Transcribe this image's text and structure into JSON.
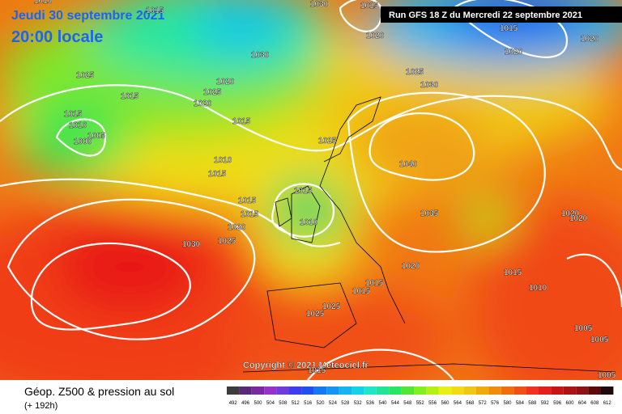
{
  "header": {
    "date": "Jeudi 30 septembre 2021",
    "time": "20:00 locale",
    "run": "Run GFS 18 Z du Mercredi 22 septembre 2021"
  },
  "copyright": "Copyright © 2021 Meteociel.fr",
  "footer": {
    "title": "Géop. Z500 & pression au sol",
    "lead": "(+ 192h)"
  },
  "legend": {
    "labels": [
      "492",
      "496",
      "500",
      "504",
      "508",
      "512",
      "516",
      "520",
      "524",
      "528",
      "532",
      "536",
      "540",
      "544",
      "548",
      "552",
      "556",
      "560",
      "564",
      "568",
      "572",
      "576",
      "580",
      "584",
      "588",
      "592",
      "596",
      "600",
      "604",
      "608",
      "612"
    ],
    "colors": [
      "#3c3c3c",
      "#5a2878",
      "#7828a0",
      "#9632c8",
      "#6e3cdc",
      "#3c3cf0",
      "#1e50f0",
      "#1478f0",
      "#1496f0",
      "#14b4f0",
      "#14d2e6",
      "#1ee6c8",
      "#1ee696",
      "#28e664",
      "#50e632",
      "#82f01e",
      "#b4f014",
      "#e6f014",
      "#f0dc14",
      "#f0c814",
      "#f0aa0a",
      "#f08c0a",
      "#f06e0a",
      "#f05014",
      "#f0321e",
      "#e61e1e",
      "#c81414",
      "#aa1414",
      "#8c1414",
      "#5a0a0a",
      "#1e0a0a"
    ]
  },
  "isobars": [
    "1010",
    "1015",
    "1030",
    "1015",
    "1020",
    "1015",
    "1020",
    "1020",
    "1025",
    "1030",
    "1020",
    "1025",
    "1030",
    "1015",
    "1025",
    "1020",
    "1015",
    "1010",
    "1005",
    "1000",
    "1015",
    "1025",
    "1010",
    "1015",
    "1040",
    "1015",
    "1015",
    "1015",
    "1010",
    "1035",
    "1020",
    "1020",
    "1020",
    "1025",
    "1030",
    "1020",
    "1015",
    "1015",
    "1010",
    "1015",
    "1025",
    "1025",
    "1005",
    "1005",
    "1015",
    "1005"
  ]
}
